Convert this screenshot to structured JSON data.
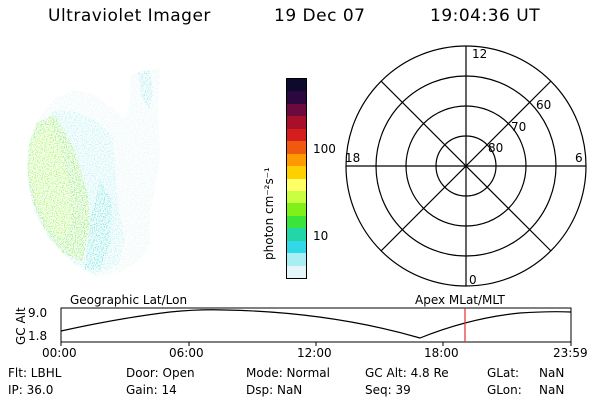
{
  "header": {
    "instrument": "Ultraviolet Imager",
    "date": "19 Dec 07",
    "time": "19:04:36 UT"
  },
  "colorbar": {
    "label": "photon cm⁻²s⁻¹",
    "ticks": [
      "100",
      "10"
    ],
    "colors": [
      "#0d0a2e",
      "#2b0840",
      "#6a0a3e",
      "#a8102a",
      "#d41e1e",
      "#f05a10",
      "#ff9a00",
      "#ffd000",
      "#ffff66",
      "#c8ff40",
      "#7ff018",
      "#3ae43a",
      "#22d6a8",
      "#33d8e6",
      "#a8eef2",
      "#e4f6f8"
    ]
  },
  "polar": {
    "mlt_labels": {
      "top": "12",
      "bottom": "0",
      "left": "18",
      "right": "6"
    },
    "lat_labels": [
      "60",
      "70",
      "80"
    ]
  },
  "timeline": {
    "left_title": "Geographic Lat/Lon",
    "right_title": "Apex MLat/MLT",
    "ylabel": "GC Alt",
    "ymax_label": "9.0",
    "ymin_label": "1.8",
    "xticks": [
      "00:00",
      "06:00",
      "12:00",
      "18:00",
      "23:59"
    ],
    "marker_color": "#e03030"
  },
  "status": {
    "filter": "Flt: LBHL",
    "ip": "IP: 36.0",
    "door": "Door: Open",
    "gain": "Gain: 14",
    "mode": "Mode: Normal",
    "dsp": "Dsp:  NaN",
    "gc_alt": "GC Alt: 4.8 Re",
    "seq": "Seq: 39",
    "glat_label": "GLat:",
    "glat_value": "NaN",
    "glon_label": "GLon:",
    "glon_value": "NaN"
  }
}
